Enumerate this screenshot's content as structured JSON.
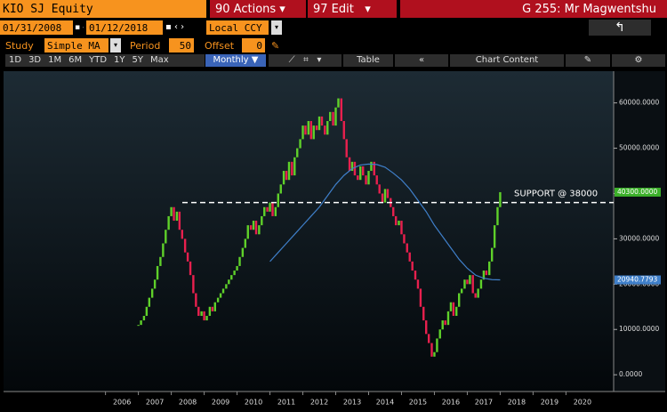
{
  "toolbar": {
    "security": "KIO SJ Equity",
    "actions": "90 Actions",
    "edit": "97 Edit",
    "user": "G 255: Mr Magwentshu",
    "start_date": "01/31/2008",
    "end_date": "01/12/2018",
    "currency": "Local CCY",
    "study_label": "Study",
    "study": "Simple MA",
    "period_label": "Period",
    "period": "50",
    "offset_label": "Offset",
    "offset": "0",
    "ranges": [
      "1D",
      "3D",
      "1M",
      "6M",
      "YTD",
      "1Y",
      "5Y",
      "Max"
    ],
    "frequency": "Monthly",
    "table": "Table",
    "chart_content": "Chart Content"
  },
  "chart_data": {
    "type": "candlestick",
    "price": {
      "up_color": "#5fd12a",
      "down_color": "#e8204e",
      "last_label": "40300.0000",
      "x": [
        2007.0,
        2007.08,
        2007.17,
        2007.25,
        2007.33,
        2007.42,
        2007.5,
        2007.58,
        2007.67,
        2007.75,
        2007.83,
        2007.92,
        2008.0,
        2008.08,
        2008.17,
        2008.25,
        2008.33,
        2008.42,
        2008.5,
        2008.58,
        2008.67,
        2008.75,
        2008.83,
        2008.92,
        2009.0,
        2009.08,
        2009.17,
        2009.25,
        2009.33,
        2009.42,
        2009.5,
        2009.58,
        2009.67,
        2009.75,
        2009.83,
        2009.92,
        2010.0,
        2010.08,
        2010.17,
        2010.25,
        2010.33,
        2010.42,
        2010.5,
        2010.58,
        2010.67,
        2010.75,
        2010.83,
        2010.92,
        2011.0,
        2011.08,
        2011.17,
        2011.25,
        2011.33,
        2011.42,
        2011.5,
        2011.58,
        2011.67,
        2011.75,
        2011.83,
        2011.92,
        2012.0,
        2012.08,
        2012.17,
        2012.25,
        2012.33,
        2012.42,
        2012.5,
        2012.58,
        2012.67,
        2012.75,
        2012.83,
        2012.92,
        2013.0,
        2013.08,
        2013.17,
        2013.25,
        2013.33,
        2013.42,
        2013.5,
        2013.58,
        2013.67,
        2013.75,
        2013.83,
        2013.92,
        2014.0,
        2014.08,
        2014.17,
        2014.25,
        2014.33,
        2014.42,
        2014.5,
        2014.58,
        2014.67,
        2014.75,
        2014.83,
        2014.92,
        2015.0,
        2015.08,
        2015.17,
        2015.25,
        2015.33,
        2015.42,
        2015.5,
        2015.58,
        2015.67,
        2015.75,
        2015.83,
        2015.92,
        2016.0,
        2016.08,
        2016.17,
        2016.25,
        2016.33,
        2016.42,
        2016.5,
        2016.58,
        2016.67,
        2016.75,
        2016.83,
        2016.92,
        2017.0,
        2017.08,
        2017.17,
        2017.25,
        2017.33,
        2017.42,
        2017.5,
        2017.58,
        2017.67,
        2017.75,
        2017.83,
        2017.92,
        2018.0
      ],
      "values": [
        11000,
        12000,
        13000,
        15000,
        17000,
        19000,
        21000,
        24000,
        26000,
        29000,
        32000,
        35000,
        37000,
        34000,
        36000,
        32000,
        30000,
        27000,
        25000,
        22000,
        18000,
        15000,
        13000,
        14000,
        12000,
        13000,
        15000,
        14000,
        16000,
        17000,
        18000,
        19000,
        20000,
        21000,
        22000,
        23000,
        24000,
        26000,
        28000,
        30000,
        33000,
        32000,
        34000,
        31000,
        33000,
        35000,
        37000,
        36000,
        38000,
        35000,
        37000,
        40000,
        42000,
        45000,
        43000,
        47000,
        44000,
        48000,
        50000,
        52000,
        55000,
        53000,
        56000,
        52000,
        55000,
        54000,
        57000,
        55000,
        53000,
        56000,
        58000,
        55000,
        59000,
        61000,
        56000,
        52000,
        48000,
        45000,
        47000,
        44000,
        43000,
        46000,
        44000,
        42000,
        45000,
        47000,
        44000,
        42000,
        40000,
        38000,
        41000,
        39000,
        37000,
        35000,
        33000,
        34000,
        31000,
        29000,
        27000,
        25000,
        23000,
        21000,
        19000,
        15000,
        12000,
        9000,
        7000,
        4000,
        5000,
        8000,
        10000,
        12000,
        11000,
        14000,
        16000,
        13000,
        15000,
        18000,
        19000,
        21000,
        20000,
        22000,
        18000,
        17000,
        19000,
        21000,
        23000,
        22000,
        25000,
        28000,
        33000,
        37000,
        40300
      ]
    },
    "ma": {
      "color": "#3f7fc9",
      "last_label": "20940.7793",
      "x": [
        2011.0,
        2011.25,
        2011.5,
        2011.75,
        2012.0,
        2012.25,
        2012.5,
        2012.75,
        2013.0,
        2013.25,
        2013.5,
        2013.75,
        2014.0,
        2014.25,
        2014.5,
        2014.75,
        2015.0,
        2015.25,
        2015.5,
        2015.75,
        2016.0,
        2016.25,
        2016.5,
        2016.75,
        2017.0,
        2017.25,
        2017.5,
        2017.75,
        2018.0
      ],
      "values": [
        25000,
        27000,
        29000,
        31000,
        33000,
        35000,
        37000,
        39500,
        42000,
        44000,
        45500,
        46300,
        46500,
        46400,
        45800,
        44500,
        43000,
        41000,
        38500,
        36000,
        33000,
        30500,
        28000,
        25500,
        23500,
        22000,
        21300,
        21000,
        20940.7793
      ]
    },
    "support": {
      "value": 38000,
      "label": "SUPPORT @ 38000"
    },
    "xlim": [
      2002.9,
      2021.45
    ],
    "xticks": [
      2006,
      2007,
      2008,
      2009,
      2010,
      2011,
      2012,
      2013,
      2014,
      2015,
      2016,
      2017,
      2018,
      2019,
      2020
    ],
    "ylim": [
      -3700,
      67000
    ],
    "yticks": [
      {
        "value": 0,
        "label": "0.0000"
      },
      {
        "value": 10000,
        "label": "10000.0000"
      },
      {
        "value": 20000,
        "label": "20000.0000"
      },
      {
        "value": 30000,
        "label": "30000.0000"
      },
      {
        "value": 40000,
        "label": "40000.0000"
      },
      {
        "value": 50000,
        "label": "50000.0000"
      },
      {
        "value": 60000,
        "label": "60000.0000"
      }
    ]
  }
}
